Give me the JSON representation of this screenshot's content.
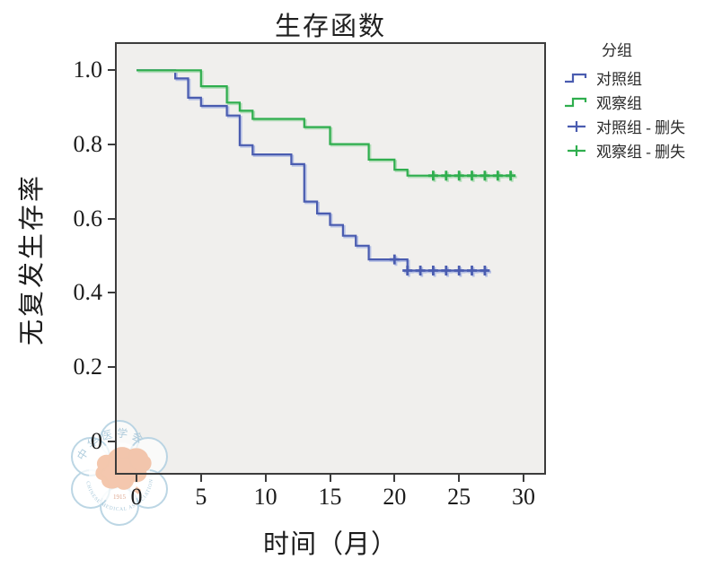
{
  "title": "生存函数",
  "x_axis": {
    "label": "时间（月）",
    "ticks": [
      "0",
      "5",
      "10",
      "15",
      "20",
      "25",
      "30"
    ],
    "tick_values": [
      0,
      5,
      10,
      15,
      20,
      25,
      30
    ]
  },
  "y_axis": {
    "label": "无复发生存率",
    "ticks": [
      "1.0",
      "0.8",
      "0.6",
      "0.4",
      "0.2",
      "0"
    ],
    "tick_values": [
      1.0,
      0.8,
      0.6,
      0.4,
      0.2,
      0
    ]
  },
  "legend": {
    "title": "分组",
    "items": [
      {
        "label": "对照组",
        "type": "step-line",
        "color": "#4a5cb0"
      },
      {
        "label": "观察组",
        "type": "step-line",
        "color": "#2fae4e"
      },
      {
        "label": "对照组 - 删失",
        "type": "censor-plus",
        "color": "#4a5cb0"
      },
      {
        "label": "观察组 - 删失",
        "type": "censor-plus",
        "color": "#2fae4e"
      }
    ]
  },
  "colors": {
    "control_line": "#4a5cb0",
    "control_halo": "#b6c0e4",
    "observation_line": "#2fae4e",
    "observation_halo": "#b4ddba",
    "plot_background": "#f0efed",
    "axis_frame": "#3c3c3c"
  },
  "watermark": {
    "text_cn": "中华医学会",
    "text_en": "CHINESE MEDICAL ASSOCIATION",
    "year": "1915"
  },
  "chart_data": {
    "type": "line",
    "subtype": "kaplan-meier-step-survival",
    "title": "生存函数",
    "xlabel": "时间（月）",
    "ylabel": "无复发生存率",
    "xlim": [
      0,
      31.7
    ],
    "ylim": [
      0,
      1.06
    ],
    "grid": false,
    "legend_position": "right-top",
    "series": [
      {
        "name": "对照组",
        "color": "#4a5cb0",
        "halo": "#b6c0e4",
        "steps": [
          [
            0,
            1.0
          ],
          [
            3,
            0.978
          ],
          [
            4,
            0.926
          ],
          [
            5,
            0.904
          ],
          [
            7,
            0.878
          ],
          [
            8,
            0.798
          ],
          [
            9,
            0.773
          ],
          [
            12,
            0.747
          ],
          [
            13,
            0.646
          ],
          [
            14,
            0.614
          ],
          [
            15,
            0.583
          ],
          [
            16,
            0.554
          ],
          [
            17,
            0.527
          ],
          [
            18,
            0.49
          ],
          [
            21,
            0.46
          ]
        ],
        "end_time": 27.2,
        "censors": [
          [
            20,
            0.49
          ],
          [
            21,
            0.46
          ],
          [
            22,
            0.46
          ],
          [
            23,
            0.46
          ],
          [
            24,
            0.46
          ],
          [
            25,
            0.46
          ],
          [
            26,
            0.46
          ],
          [
            27,
            0.46
          ]
        ]
      },
      {
        "name": "观察组",
        "color": "#2fae4e",
        "halo": "#b4ddba",
        "steps": [
          [
            0,
            1.0
          ],
          [
            5,
            0.957
          ],
          [
            7,
            0.913
          ],
          [
            8,
            0.891
          ],
          [
            9,
            0.869
          ],
          [
            13,
            0.847
          ],
          [
            15,
            0.801
          ],
          [
            18,
            0.759
          ],
          [
            20,
            0.732
          ],
          [
            21,
            0.716
          ]
        ],
        "end_time": 29.3,
        "censors": [
          [
            23,
            0.716
          ],
          [
            24,
            0.716
          ],
          [
            25,
            0.716
          ],
          [
            26,
            0.716
          ],
          [
            27,
            0.716
          ],
          [
            28,
            0.716
          ],
          [
            29,
            0.716
          ]
        ]
      }
    ]
  }
}
